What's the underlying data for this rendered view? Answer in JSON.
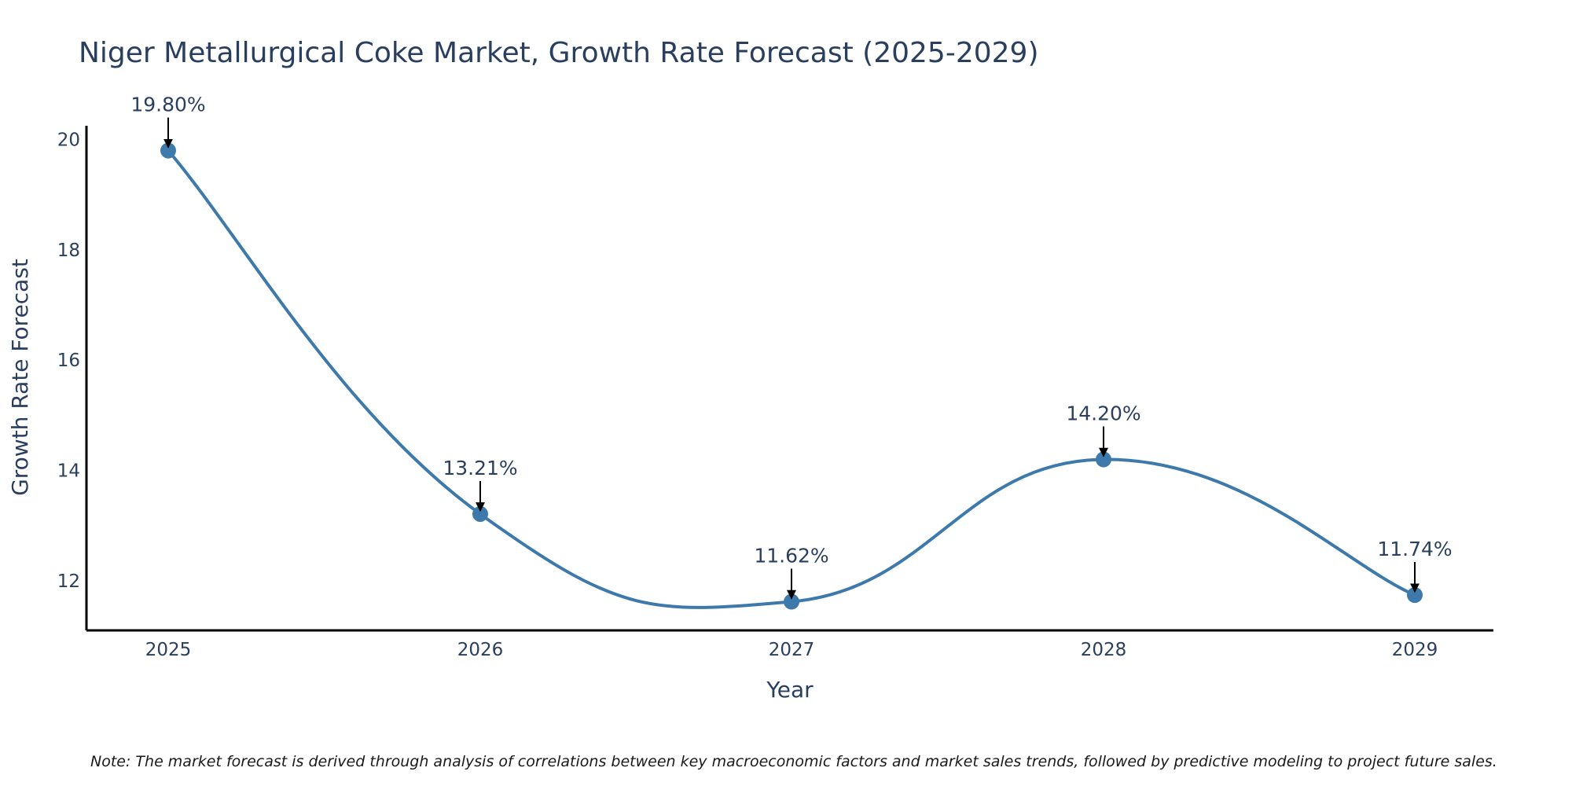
{
  "chart_data": {
    "type": "line",
    "title": "Niger Metallurgical Coke Market, Growth Rate Forecast (2025-2029)",
    "xlabel": "Year",
    "ylabel": "Growth Rate Forecast",
    "categories": [
      "2025",
      "2026",
      "2027",
      "2028",
      "2029"
    ],
    "series": [
      {
        "name": "Growth Rate Forecast",
        "values": [
          19.8,
          13.21,
          11.62,
          14.2,
          11.74
        ],
        "color": "#3d7aab"
      }
    ],
    "data_labels": [
      "19.80%",
      "13.21%",
      "11.62%",
      "14.20%",
      "11.74%"
    ],
    "y_ticks": [
      12,
      14,
      16,
      18,
      20
    ],
    "y_tick_labels": [
      "12",
      "14",
      "16",
      "18",
      "20"
    ],
    "ylim": [
      11.1,
      20.25
    ],
    "line_shape": "spline",
    "grid": false,
    "legend": "none",
    "annotation_arrow_color": "#000000"
  },
  "note": "Note: The market forecast is derived through analysis of correlations between key macroeconomic factors and market sales trends, followed by predictive modeling to project future sales."
}
